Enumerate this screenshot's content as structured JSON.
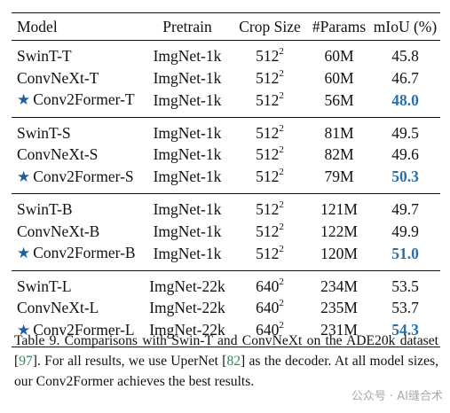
{
  "table": {
    "headers": [
      "Model",
      "Pretrain",
      "Crop Size",
      "#Params",
      "mIoU (%)"
    ],
    "groups": [
      {
        "rows": [
          {
            "model": "SwinT-T",
            "pretrain": "ImgNet-1k",
            "crop": "512",
            "crop_exp": "2",
            "params": "60M",
            "miou": "45.8",
            "ours": false
          },
          {
            "model": "ConvNeXt-T",
            "pretrain": "ImgNet-1k",
            "crop": "512",
            "crop_exp": "2",
            "params": "60M",
            "miou": "46.7",
            "ours": false
          },
          {
            "model": "Conv2Former-T",
            "pretrain": "ImgNet-1k",
            "crop": "512",
            "crop_exp": "2",
            "params": "56M",
            "miou": "48.0",
            "ours": true
          }
        ]
      },
      {
        "rows": [
          {
            "model": "SwinT-S",
            "pretrain": "ImgNet-1k",
            "crop": "512",
            "crop_exp": "2",
            "params": "81M",
            "miou": "49.5",
            "ours": false
          },
          {
            "model": "ConvNeXt-S",
            "pretrain": "ImgNet-1k",
            "crop": "512",
            "crop_exp": "2",
            "params": "82M",
            "miou": "49.6",
            "ours": false
          },
          {
            "model": "Conv2Former-S",
            "pretrain": "ImgNet-1k",
            "crop": "512",
            "crop_exp": "2",
            "params": "79M",
            "miou": "50.3",
            "ours": true
          }
        ]
      },
      {
        "rows": [
          {
            "model": "SwinT-B",
            "pretrain": "ImgNet-1k",
            "crop": "512",
            "crop_exp": "2",
            "params": "121M",
            "miou": "49.7",
            "ours": false
          },
          {
            "model": "ConvNeXt-B",
            "pretrain": "ImgNet-1k",
            "crop": "512",
            "crop_exp": "2",
            "params": "122M",
            "miou": "49.9",
            "ours": false
          },
          {
            "model": "Conv2Former-B",
            "pretrain": "ImgNet-1k",
            "crop": "512",
            "crop_exp": "2",
            "params": "120M",
            "miou": "51.0",
            "ours": true
          }
        ]
      },
      {
        "rows": [
          {
            "model": "SwinT-L",
            "pretrain": "ImgNet-22k",
            "crop": "640",
            "crop_exp": "2",
            "params": "234M",
            "miou": "53.5",
            "ours": false
          },
          {
            "model": "ConvNeXt-L",
            "pretrain": "ImgNet-22k",
            "crop": "640",
            "crop_exp": "2",
            "params": "235M",
            "miou": "53.7",
            "ours": false
          },
          {
            "model": "Conv2Former-L",
            "pretrain": "ImgNet-22k",
            "crop": "640",
            "crop_exp": "2",
            "params": "231M",
            "miou": "54.3",
            "ours": true
          }
        ]
      }
    ]
  },
  "caption": {
    "part1": "Table 9. Comparisons with Swin-T and ConvNeXt on the ADE20k dataset [",
    "cite1": "97",
    "part2": "]. For all results, we use UperNet [",
    "cite2": "82",
    "part3": "] as the decoder. At all model sizes, our Conv2Former achieves the best results."
  },
  "watermark": "公众号 · AI缝合术",
  "colors": {
    "highlight": "#2d6fa3",
    "star": "#1f5f9a",
    "citation": "#2e8b57"
  }
}
